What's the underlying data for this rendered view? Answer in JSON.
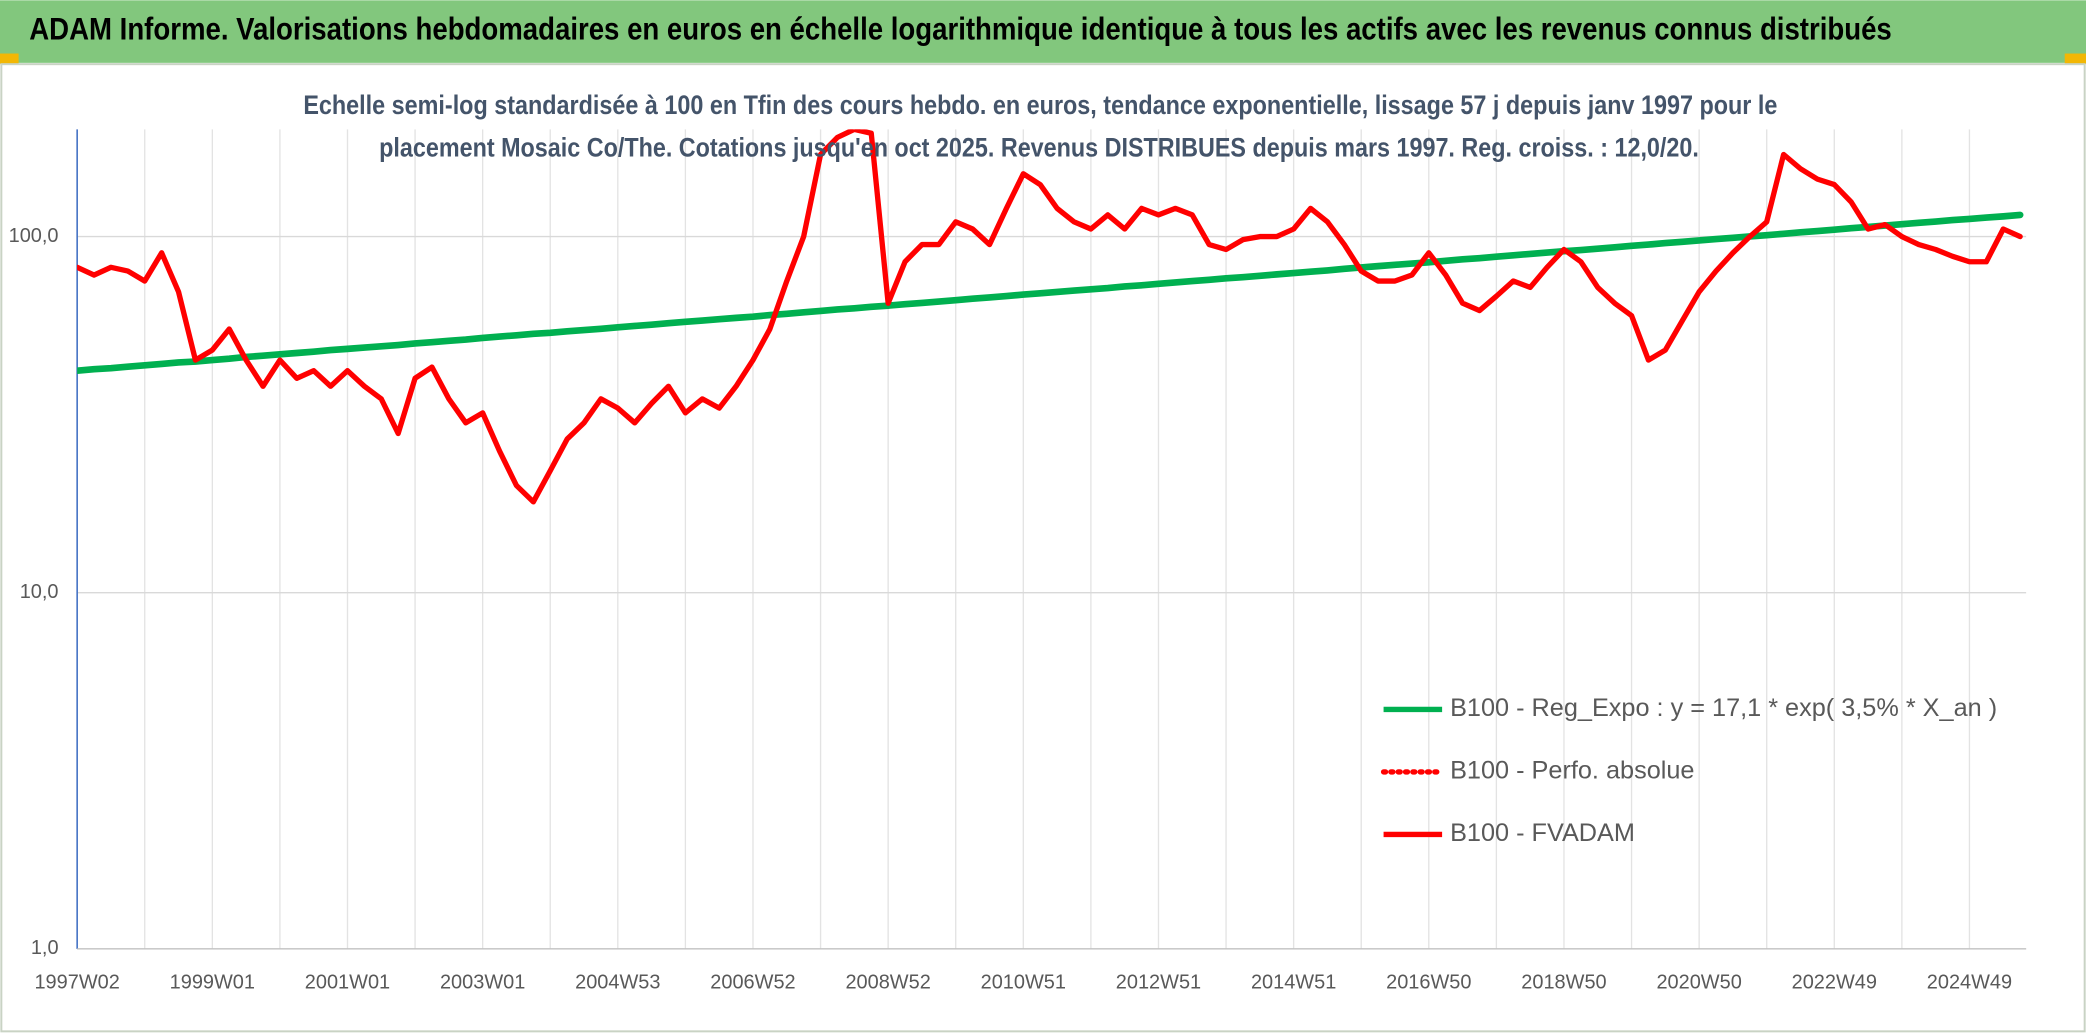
{
  "chart_data": {
    "type": "line",
    "title": "ADAM Informe. Valorisations hebdomadaires en euros en échelle logarithmique identique à tous les actifs avec les revenus connus distribués",
    "subtitle": [
      "Echelle semi-log standardisée à 100 en Tfin des cours hebdo. en euros, tendance exponentielle, lissage 57 j depuis janv 1997 pour le",
      "placement Mosaic Co/The. Cotations jusqu'en oct 2025. Revenus DISTRIBUES depuis mars 1997. Reg. croiss. : 12,0/20."
    ],
    "categories": [
      "1997W02",
      null,
      null,
      null,
      null,
      null,
      null,
      null,
      "1999W01",
      null,
      null,
      null,
      null,
      null,
      null,
      null,
      "2001W01",
      null,
      null,
      null,
      null,
      null,
      null,
      null,
      "2003W01",
      null,
      null,
      null,
      null,
      null,
      null,
      null,
      "2004W53",
      null,
      null,
      null,
      null,
      null,
      null,
      null,
      "2006W52",
      null,
      null,
      null,
      null,
      null,
      null,
      null,
      "2008W52",
      null,
      null,
      null,
      null,
      null,
      null,
      null,
      "2010W51",
      null,
      null,
      null,
      null,
      null,
      null,
      null,
      "2012W51",
      null,
      null,
      null,
      null,
      null,
      null,
      null,
      "2014W51",
      null,
      null,
      null,
      null,
      null,
      null,
      null,
      "2016W50",
      null,
      null,
      null,
      null,
      null,
      null,
      null,
      "2018W50",
      null,
      null,
      null,
      null,
      null,
      null,
      null,
      "2020W50",
      null,
      null,
      null,
      null,
      null,
      null,
      null,
      "2022W49",
      null,
      null,
      null,
      null,
      null,
      null,
      null,
      "2024W49",
      null,
      null,
      null
    ],
    "series": [
      {
        "name": "B100 - Reg_Expo : y = 17,1 * exp( 3,5% *  X_an )",
        "color": "#00b050",
        "style": "solid",
        "values": [
          42.0,
          42.4,
          42.7,
          43.1,
          43.5,
          43.9,
          44.3,
          44.6,
          45.0,
          45.4,
          45.9,
          46.3,
          46.7,
          47.1,
          47.5,
          48.0,
          48.4,
          48.8,
          49.2,
          49.6,
          50.1,
          50.5,
          51.0,
          51.4,
          51.9,
          52.4,
          52.8,
          53.3,
          53.7,
          54.2,
          54.6,
          55.1,
          55.6,
          56.1,
          56.6,
          57.1,
          57.6,
          58.1,
          58.6,
          59.1,
          59.6,
          60.2,
          60.7,
          61.3,
          61.8,
          62.4,
          62.9,
          63.5,
          64.0,
          64.6,
          65.1,
          65.7,
          66.3,
          66.9,
          67.5,
          68.1,
          68.7,
          69.3,
          69.9,
          70.5,
          71.1,
          71.7,
          72.4,
          73.0,
          73.7,
          74.3,
          75.0,
          75.6,
          76.3,
          76.9,
          77.6,
          78.3,
          79.0,
          79.7,
          80.4,
          81.2,
          81.9,
          82.6,
          83.3,
          84.0,
          84.7,
          85.5,
          86.3,
          87.0,
          87.8,
          88.6,
          89.4,
          90.2,
          91.0,
          91.7,
          92.5,
          93.3,
          94.2,
          95.0,
          95.9,
          96.7,
          97.5,
          98.4,
          99.2,
          100.1,
          100.9,
          101.8,
          102.8,
          103.7,
          104.6,
          105.6,
          106.5,
          107.4,
          108.3,
          109.3,
          110.2,
          111.2,
          112.1,
          113.1,
          114.0,
          115.0
        ]
      },
      {
        "name": "B100 - Perfo. absolue",
        "color": "#ff0000",
        "style": "dotted",
        "values": [
          82,
          78,
          82,
          80,
          75,
          90,
          70,
          45,
          48,
          55,
          45,
          38,
          45,
          40,
          42,
          38,
          42,
          38,
          35,
          28,
          40,
          43,
          35,
          30,
          32,
          25,
          20,
          18,
          22,
          27,
          30,
          35,
          33,
          30,
          34,
          38,
          32,
          35,
          33,
          38,
          45,
          55,
          75,
          100,
          170,
          190,
          200,
          195,
          65,
          85,
          95,
          95,
          110,
          105,
          95,
          120,
          150,
          140,
          120,
          110,
          105,
          115,
          105,
          120,
          115,
          120,
          115,
          95,
          92,
          98,
          100,
          100,
          105,
          120,
          110,
          95,
          80,
          75,
          75,
          78,
          90,
          78,
          65,
          62,
          68,
          75,
          72,
          82,
          92,
          85,
          72,
          65,
          60,
          45,
          48,
          58,
          70,
          80,
          90,
          100,
          110,
          170,
          155,
          145,
          140,
          125,
          105,
          108,
          100,
          95,
          92,
          88,
          85,
          85,
          105,
          100
        ]
      },
      {
        "name": "B100 - FVADAM",
        "color": "#ff0000",
        "style": "solid",
        "values": [
          82,
          78,
          82,
          80,
          75,
          90,
          70,
          45,
          48,
          55,
          45,
          38,
          45,
          40,
          42,
          38,
          42,
          38,
          35,
          28,
          40,
          43,
          35,
          30,
          32,
          25,
          20,
          18,
          22,
          27,
          30,
          35,
          33,
          30,
          34,
          38,
          32,
          35,
          33,
          38,
          45,
          55,
          75,
          100,
          170,
          190,
          200,
          195,
          65,
          85,
          95,
          95,
          110,
          105,
          95,
          120,
          150,
          140,
          120,
          110,
          105,
          115,
          105,
          120,
          115,
          120,
          115,
          95,
          92,
          98,
          100,
          100,
          105,
          120,
          110,
          95,
          80,
          75,
          75,
          78,
          90,
          78,
          65,
          62,
          68,
          75,
          72,
          82,
          92,
          85,
          72,
          65,
          60,
          45,
          48,
          58,
          70,
          80,
          90,
          100,
          110,
          170,
          155,
          145,
          140,
          125,
          105,
          108,
          100,
          95,
          92,
          88,
          85,
          85,
          105,
          100
        ]
      }
    ],
    "ylim": [
      1,
      200
    ],
    "yticks": [
      {
        "value": 1,
        "label": "1,0"
      },
      {
        "value": 10,
        "label": "10,0"
      },
      {
        "value": 100,
        "label": "100,0"
      }
    ],
    "log_y": true,
    "grid": true,
    "legend": "lower right"
  }
}
